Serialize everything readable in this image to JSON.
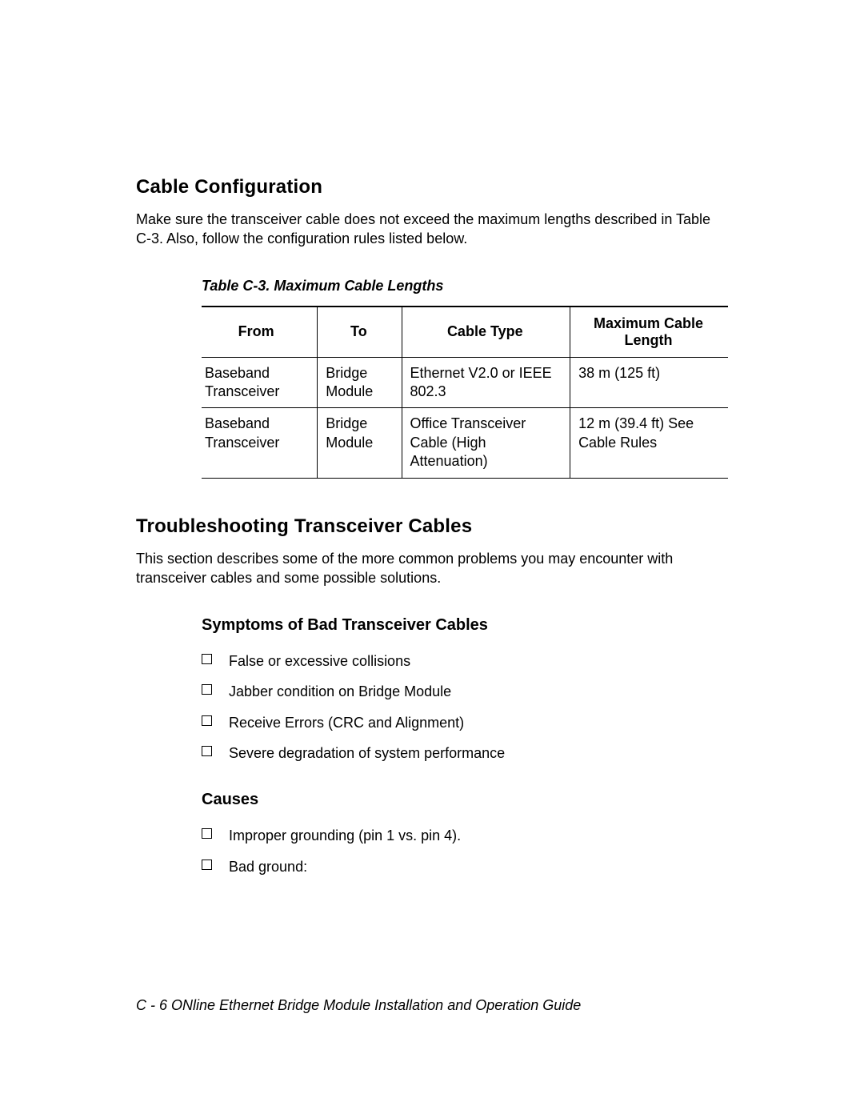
{
  "section1": {
    "title": "Cable Configuration",
    "body": "Make sure the transceiver cable does not exceed the maximum lengths described in Table C-3.  Also, follow the configuration rules listed below."
  },
  "table": {
    "caption": "Table C-3.  Maximum Cable Lengths",
    "columns": [
      "From",
      "To",
      "Cable Type",
      "Maximum Cable Length"
    ],
    "rows": [
      [
        "Baseband Transceiver",
        "Bridge Module",
        "Ethernet V2.0 or IEEE 802.3",
        "38 m (125 ft)"
      ],
      [
        "Baseband Transceiver",
        "Bridge Module",
        "Office Transceiver Cable (High Attenuation)",
        "12 m (39.4 ft) See Cable Rules"
      ]
    ]
  },
  "section2": {
    "title": "Troubleshooting Transceiver Cables",
    "body": "This section describes some of the more common problems you may encounter with transceiver cables and some possible solutions."
  },
  "symptoms": {
    "title": "Symptoms of Bad Transceiver Cables",
    "items": [
      "False or excessive collisions",
      "Jabber condition on Bridge Module",
      "Receive Errors (CRC and Alignment)",
      "Severe degradation of system performance"
    ]
  },
  "causes": {
    "title": "Causes",
    "items": [
      "Improper grounding (pin 1 vs. pin 4).",
      "Bad ground:"
    ]
  },
  "footer": "C - 6  ONline Ethernet Bridge Module Installation and Operation Guide"
}
